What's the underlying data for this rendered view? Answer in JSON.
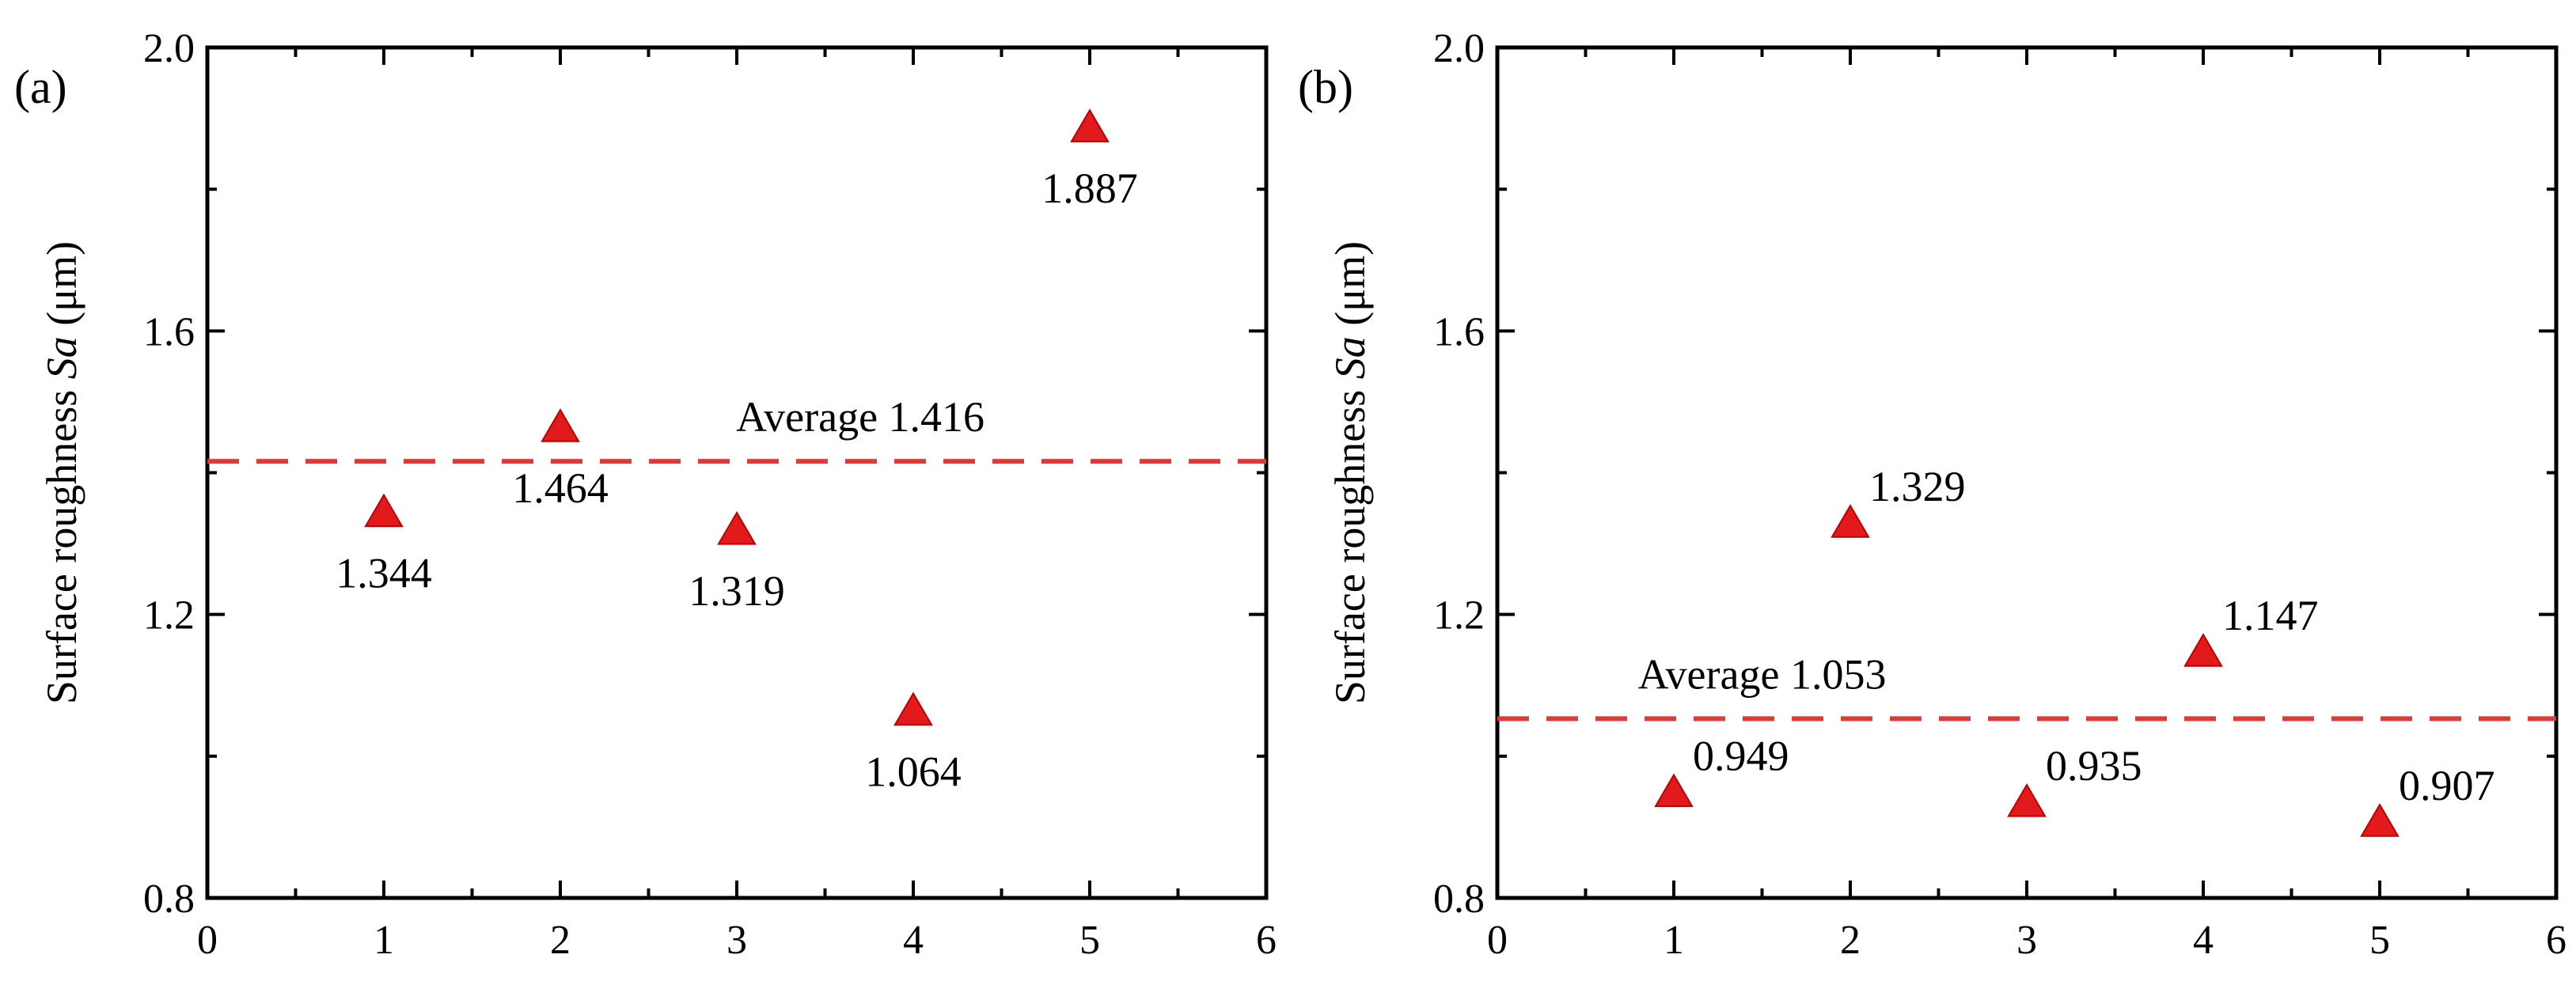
{
  "colors": {
    "marker": "#e31a1c",
    "marker_stroke": "#c00000",
    "average_line": "#e0393a",
    "axis": "#000000"
  },
  "chart_data": [
    {
      "panel_label": "(a)",
      "type": "scatter",
      "marker": "triangle",
      "xlabel": "",
      "ylabel_prefix": "Surface roughness ",
      "ylabel_italic": "Sa",
      "ylabel_suffix": " (μm)",
      "xlim": [
        0,
        6
      ],
      "ylim": [
        0.8,
        2.0
      ],
      "x_ticks": [
        0,
        1,
        2,
        3,
        4,
        5,
        6
      ],
      "x_tick_labels": [
        "0",
        "1",
        "2",
        "3",
        "4",
        "5",
        "6"
      ],
      "y_ticks": [
        0.8,
        1.2,
        1.6,
        2.0
      ],
      "y_tick_labels": [
        "0.8",
        "1.2",
        "1.6",
        "2.0"
      ],
      "points": [
        {
          "x": 1,
          "y": 1.344,
          "label": "1.344",
          "label_pos": "below"
        },
        {
          "x": 2,
          "y": 1.464,
          "label": "1.464",
          "label_pos": "below"
        },
        {
          "x": 3,
          "y": 1.319,
          "label": "1.319",
          "label_pos": "below"
        },
        {
          "x": 4,
          "y": 1.064,
          "label": "1.064",
          "label_pos": "below"
        },
        {
          "x": 5,
          "y": 1.887,
          "label": "1.887",
          "label_pos": "below"
        }
      ],
      "average": {
        "value": 1.416,
        "label": "Average 1.416",
        "label_pos": "above-right"
      }
    },
    {
      "panel_label": "(b)",
      "type": "scatter",
      "marker": "triangle",
      "xlabel": "",
      "ylabel_prefix": "Surface roughness ",
      "ylabel_italic": "Sa",
      "ylabel_suffix": " (μm)",
      "xlim": [
        0,
        6
      ],
      "ylim": [
        0.8,
        2.0
      ],
      "x_ticks": [
        0,
        1,
        2,
        3,
        4,
        5,
        6
      ],
      "x_tick_labels": [
        "0",
        "1",
        "2",
        "3",
        "4",
        "5",
        "6"
      ],
      "y_ticks": [
        0.8,
        1.2,
        1.6,
        2.0
      ],
      "y_tick_labels": [
        "0.8",
        "1.2",
        "1.6",
        "2.0"
      ],
      "points": [
        {
          "x": 1,
          "y": 0.949,
          "label": "0.949",
          "label_pos": "above-right"
        },
        {
          "x": 2,
          "y": 1.329,
          "label": "1.329",
          "label_pos": "above-right"
        },
        {
          "x": 3,
          "y": 0.935,
          "label": "0.935",
          "label_pos": "above-right"
        },
        {
          "x": 4,
          "y": 1.147,
          "label": "1.147",
          "label_pos": "above-right"
        },
        {
          "x": 5,
          "y": 0.907,
          "label": "0.907",
          "label_pos": "above-right"
        }
      ],
      "average": {
        "value": 1.053,
        "label": "Average 1.053",
        "label_pos": "above-left"
      }
    }
  ]
}
